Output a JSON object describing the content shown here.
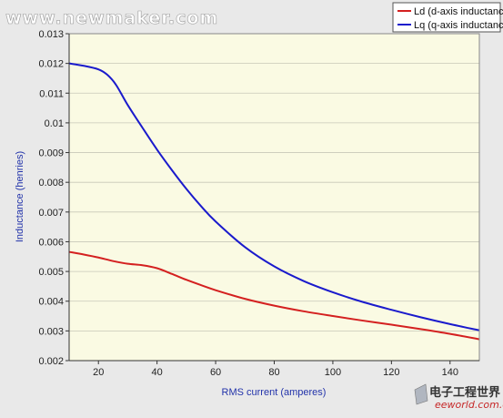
{
  "watermark": "www.newmaker.com",
  "logo": {
    "cn": "电子工程世界",
    "en": "eeworld.com.cn"
  },
  "chart_data": {
    "type": "line",
    "title": "",
    "xlabel": "RMS current (amperes)",
    "ylabel": "Inductance (henries)",
    "xlim": [
      10,
      150
    ],
    "ylim": [
      0.002,
      0.013
    ],
    "xticks": [
      20,
      40,
      60,
      80,
      100,
      120,
      140
    ],
    "yticks": [
      "0.002",
      "0.003",
      "0.004",
      "0.005",
      "0.006",
      "0.007",
      "0.008",
      "0.009",
      "0.01",
      "0.011",
      "0.012",
      "0.013"
    ],
    "grid": true,
    "legend_position": "top-right",
    "colors": {
      "plot_bg": "#fafae3",
      "grid": "#c8c8b8",
      "ld": "#d42020",
      "lq": "#1a1acc"
    },
    "series": [
      {
        "name": "Ld (d-axis inductance)",
        "color": "#d42020",
        "x": [
          10,
          15,
          20,
          25,
          30,
          35,
          40,
          45,
          50,
          55,
          60,
          70,
          80,
          90,
          100,
          110,
          120,
          130,
          140,
          150
        ],
        "y": [
          0.00566,
          0.00557,
          0.00547,
          0.00535,
          0.00526,
          0.00521,
          0.00511,
          0.00492,
          0.00472,
          0.00454,
          0.00437,
          0.00408,
          0.00385,
          0.00366,
          0.0035,
          0.00335,
          0.00321,
          0.00306,
          0.0029,
          0.00272
        ]
      },
      {
        "name": "Lq (q-axis inductance)",
        "color": "#1a1acc",
        "x": [
          10,
          15,
          20,
          23,
          26,
          30,
          35,
          40,
          45,
          50,
          55,
          60,
          70,
          80,
          90,
          100,
          110,
          120,
          130,
          140,
          150
        ],
        "y": [
          0.012,
          0.01192,
          0.0118,
          0.01162,
          0.01128,
          0.0106,
          0.00984,
          0.0091,
          0.00842,
          0.00778,
          0.0072,
          0.00668,
          0.00582,
          0.00517,
          0.00468,
          0.0043,
          0.00398,
          0.00371,
          0.00346,
          0.00323,
          0.00302
        ]
      }
    ]
  }
}
